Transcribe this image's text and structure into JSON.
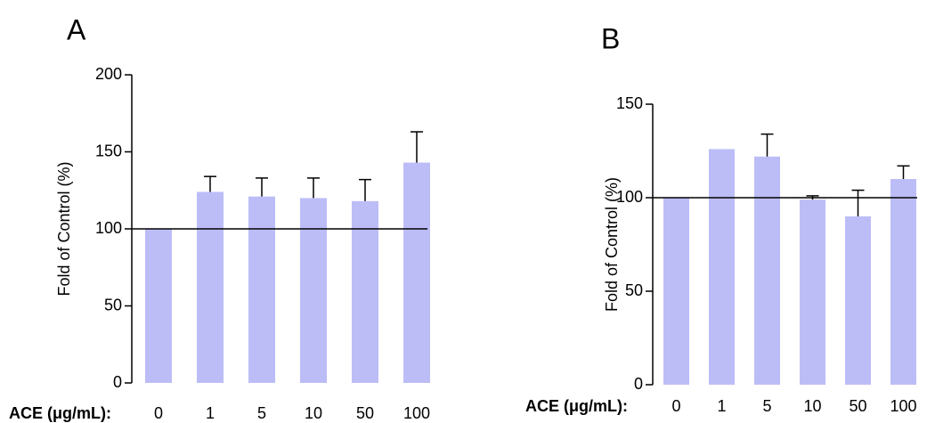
{
  "chart_data": [
    {
      "type": "bar",
      "panel_label": "A",
      "ylabel": "Fold of Control (%)",
      "xlabel": "ACE (μg/mL):",
      "categories": [
        "0",
        "1",
        "5",
        "10",
        "50",
        "100"
      ],
      "values": [
        100,
        124,
        121,
        120,
        118,
        143
      ],
      "errors": [
        null,
        10,
        12,
        13,
        14,
        20
      ],
      "color": "#bcbdf7",
      "ylim": [
        0,
        200
      ],
      "yticks": [
        0,
        50,
        100,
        150,
        200
      ],
      "reference_line": 100
    },
    {
      "type": "bar",
      "panel_label": "B",
      "ylabel": "Fold of Control (%)",
      "xlabel": "ACE (μg/mL):",
      "categories": [
        "0",
        "1",
        "5",
        "10",
        "50",
        "100"
      ],
      "values": [
        100,
        126,
        122,
        99,
        90,
        110
      ],
      "errors": [
        null,
        null,
        12,
        2,
        14,
        7
      ],
      "color": "#bcbdf7",
      "ylim": [
        0,
        150
      ],
      "yticks": [
        0,
        50,
        100,
        150
      ],
      "reference_line": 100
    }
  ]
}
